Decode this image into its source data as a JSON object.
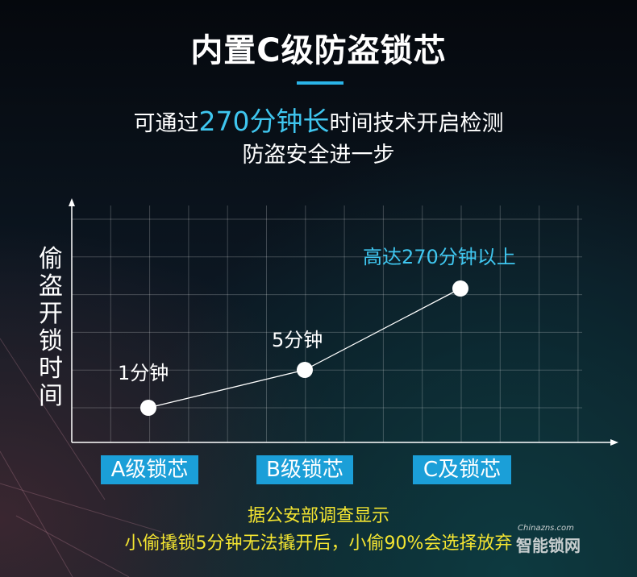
{
  "header": {
    "title": "内置C级防盗锁芯",
    "subtitle_pre": "可通过",
    "subtitle_highlight": "270分钟长",
    "subtitle_post": "时间技术开启检测",
    "subtitle_line2": "防盗安全进一步"
  },
  "chart_data": {
    "type": "line",
    "ylabel": "偷盗开锁时间",
    "categories": [
      "A级锁芯",
      "B级锁芯",
      "C及锁芯"
    ],
    "series": [
      {
        "values": [
          1,
          5,
          270
        ],
        "unit": "分钟"
      }
    ],
    "data_labels": [
      "1分钟",
      "5分钟",
      "高达270分钟以上"
    ],
    "grid": true,
    "colors": {
      "line": "#ffffff",
      "point": "#ffffff",
      "category_bg": "#1b9fd8",
      "highlight": "#3fc6ef"
    }
  },
  "footer": {
    "line1": "据公安部调查显示",
    "line2": "小偷撬锁5分钟无法撬开后，小偷90%会选择放弃",
    "color": "#f4e531"
  },
  "watermark": {
    "domain": "Chinazns.com",
    "name": "智能锁网"
  }
}
